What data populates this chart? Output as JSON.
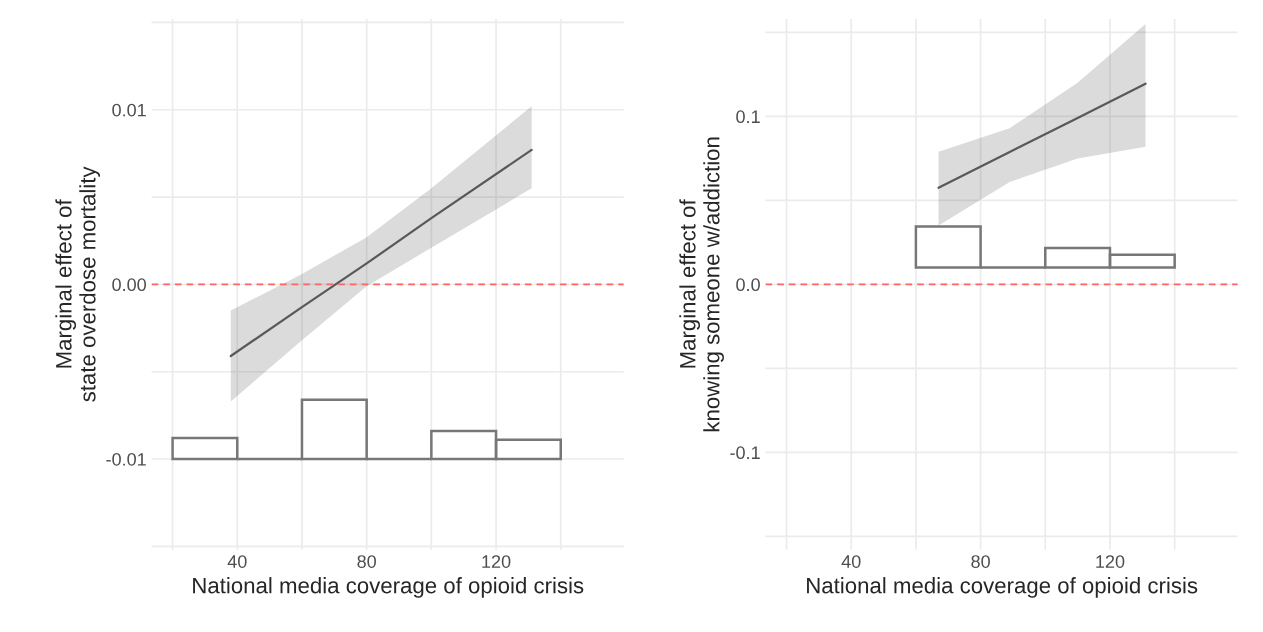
{
  "chart_data": [
    {
      "type": "line",
      "xlabel": "National media coverage of opioid crisis",
      "ylabel": "Marginal effect of\nstate overdose mortality",
      "xlim": [
        13.5,
        159.5
      ],
      "ylim": [
        -0.0152,
        0.0152
      ],
      "xticks": [
        {
          "value": 20,
          "label": null
        },
        40,
        {
          "value": 60,
          "label": null
        },
        80,
        {
          "value": 100,
          "label": null
        },
        120,
        {
          "value": 140,
          "label": null
        }
      ],
      "yticks": [
        {
          "value": -0.015,
          "label": null
        },
        {
          "value": -0.01,
          "label": "-0.01"
        },
        {
          "value": -0.005,
          "label": null
        },
        {
          "value": 0,
          "label": "0.00"
        },
        {
          "value": 0.005,
          "label": null
        },
        {
          "value": 0.01,
          "label": "0.01"
        },
        {
          "value": 0.015,
          "label": null
        }
      ],
      "grid": true,
      "ref_lines": [
        {
          "axis": "y",
          "value": 0,
          "color": "#ff6666",
          "line_style": "dashed"
        }
      ],
      "series": [
        {
          "color": "#595959",
          "x": [
            38,
            60,
            80,
            100,
            131
          ],
          "lower": [
            -0.0067,
            -0.0032,
            -0.0001,
            0.0021,
            0.0055
          ],
          "upper": [
            -0.0015,
            0.0006,
            0.0027,
            0.0055,
            0.0102
          ],
          "values": [
            -0.0041,
            -0.0013,
            0.0012,
            0.0038,
            0.0077
          ]
        },
        {
          "type": "histogram",
          "color": "#777777",
          "bins": [
            20,
            40,
            60,
            80,
            100,
            120,
            140
          ],
          "values": [
            0.0012,
            0,
            0.0034,
            0,
            0.0016,
            0.0011
          ],
          "base": [
            -0.01,
            -0.01,
            -0.01,
            -0.01,
            -0.01,
            -0.01
          ]
        }
      ]
    },
    {
      "type": "line",
      "xlabel": "National media coverage of opioid crisis",
      "ylabel": "Marginal effect of\nknowing someone w/addiction",
      "xlim": [
        13.5,
        159.5
      ],
      "ylim": [
        -0.158,
        0.158
      ],
      "xticks": [
        {
          "value": 20,
          "label": null
        },
        40,
        {
          "value": 60,
          "label": null
        },
        80,
        {
          "value": 100,
          "label": null
        },
        120,
        {
          "value": 140,
          "label": null
        }
      ],
      "yticks": [
        {
          "value": -0.15,
          "label": null
        },
        -0.1,
        {
          "value": -0.05,
          "label": null
        },
        {
          "value": 0,
          "label": "0.0"
        },
        {
          "value": 0.05,
          "label": null
        },
        0.1,
        {
          "value": 0.15,
          "label": null
        }
      ],
      "grid": true,
      "ref_lines": [
        {
          "axis": "y",
          "value": 0,
          "color": "#ff6666",
          "line_style": "dashed"
        }
      ],
      "series": [
        {
          "color": "#595959",
          "x": [
            67,
            89,
            110,
            131
          ],
          "lower": [
            0.035,
            0.061,
            0.075,
            0.082
          ],
          "upper": [
            0.079,
            0.093,
            0.12,
            0.155
          ],
          "values": [
            0.0575,
            0.0788,
            0.0991,
            0.1195
          ]
        },
        {
          "type": "histogram",
          "color": "#777777",
          "bins": [
            60,
            80,
            100,
            120,
            140
          ],
          "values": [
            0.0245,
            0,
            0.0117,
            0.0077
          ],
          "base": [
            0.01,
            0.01,
            0.01,
            0.01
          ]
        }
      ]
    }
  ]
}
